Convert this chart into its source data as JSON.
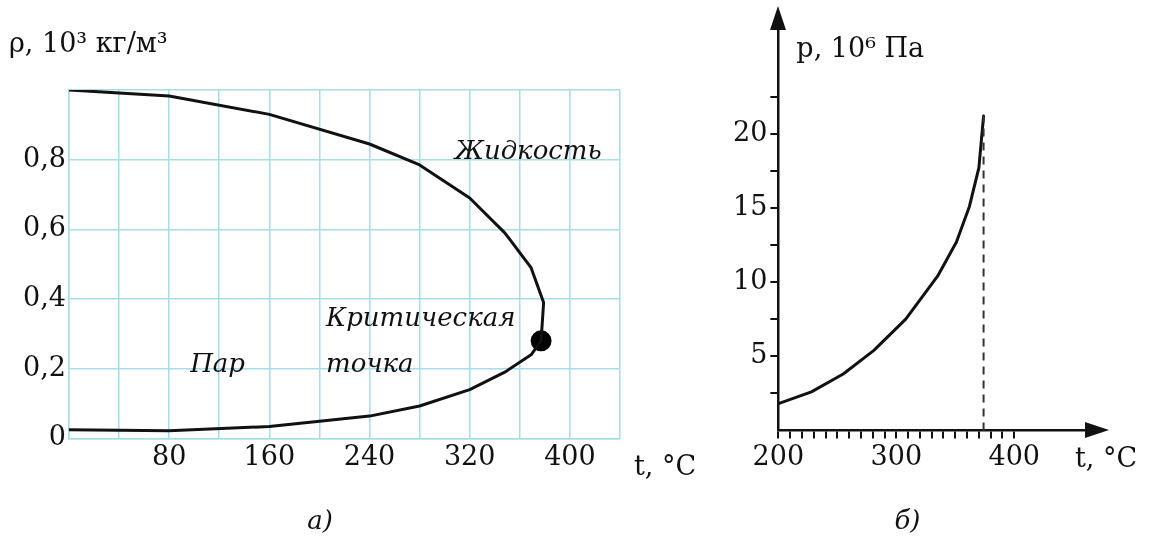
{
  "chart_data": [
    {
      "type": "line",
      "title": "а)",
      "xlabel": "t, °C",
      "ylabel": "ρ, 10³ кг/м³",
      "xlim": [
        0,
        440
      ],
      "ylim": [
        0,
        1
      ],
      "xticks": [
        {
          "value": 0,
          "label": null
        },
        {
          "value": 40,
          "label": null
        },
        80,
        {
          "value": 120,
          "label": null
        },
        160,
        {
          "value": 200,
          "label": null
        },
        240,
        {
          "value": 280,
          "label": null
        },
        320,
        {
          "value": 360,
          "label": null
        },
        400,
        {
          "value": 440,
          "label": null
        }
      ],
      "yticks": [
        0,
        {
          "value": 0.2,
          "label": "0,2"
        },
        {
          "value": 0.4,
          "label": "0,4"
        },
        {
          "value": 0.6,
          "label": "0,6"
        },
        {
          "value": 0.8,
          "label": "0,8"
        },
        {
          "value": 1,
          "label": null
        }
      ],
      "grid": true,
      "marker": "none",
      "line_style": "solid",
      "series": [
        {
          "color": "#111111",
          "x": [
            0,
            80,
            160,
            240,
            280,
            320,
            348,
            369,
            379,
            377
          ],
          "values": [
            1.0,
            0.983,
            0.93,
            0.845,
            0.785,
            0.69,
            0.59,
            0.49,
            0.39,
            0.28
          ]
        },
        {
          "color": "#111111",
          "x": [
            0,
            80,
            160,
            240,
            280,
            320,
            348,
            369,
            377
          ],
          "values": [
            0.025,
            0.022,
            0.034,
            0.064,
            0.093,
            0.14,
            0.19,
            0.24,
            0.28
          ]
        },
        {
          "type": "scatter",
          "marker": "circle",
          "color": "#000000",
          "x": [
            377
          ],
          "values": [
            0.28
          ]
        }
      ],
      "annotations": [
        "Жидкость",
        "Пар",
        {
          "text": "Критическая точка",
          "x": 377,
          "y": 0.28
        }
      ]
    },
    {
      "type": "line",
      "title": "б)",
      "xlabel": "t, °C",
      "ylabel": "p, 10⁶ Па",
      "xlim": [
        200,
        460
      ],
      "ylim": [
        0,
        27
      ],
      "xticks": [
        200,
        {
          "value": 210,
          "label": null
        },
        {
          "value": 220,
          "label": null
        },
        {
          "value": 230,
          "label": null
        },
        {
          "value": 240,
          "label": null
        },
        {
          "value": 250,
          "label": null
        },
        {
          "value": 260,
          "label": null
        },
        {
          "value": 270,
          "label": null
        },
        {
          "value": 280,
          "label": null
        },
        {
          "value": 290,
          "label": null
        },
        300,
        {
          "value": 310,
          "label": null
        },
        {
          "value": 320,
          "label": null
        },
        {
          "value": 330,
          "label": null
        },
        {
          "value": 340,
          "label": null
        },
        {
          "value": 350,
          "label": null
        },
        {
          "value": 360,
          "label": null
        },
        {
          "value": 370,
          "label": null
        },
        {
          "value": 380,
          "label": null
        },
        {
          "value": 390,
          "label": null
        },
        400
      ],
      "yticks": [
        {
          "value": 2.5,
          "label": null
        },
        5,
        {
          "value": 7.5,
          "label": null
        },
        10,
        {
          "value": 12.5,
          "label": null
        },
        15,
        {
          "value": 17.5,
          "label": null
        },
        20,
        {
          "value": 22.5,
          "label": null
        }
      ],
      "grid": false,
      "marker": "none",
      "line_style": "solid",
      "series": [
        {
          "color": "#111111",
          "x": [
            200,
            228,
            255,
            281,
            308,
            335,
            351,
            362,
            370,
            374
          ],
          "values": [
            1.8,
            2.6,
            3.8,
            5.4,
            7.5,
            10.4,
            12.7,
            15.1,
            17.7,
            21.2
          ]
        }
      ],
      "ref_lines": [
        {
          "axis": "x",
          "value": 374,
          "line_style": "dashed",
          "color": "#333333"
        }
      ]
    }
  ]
}
